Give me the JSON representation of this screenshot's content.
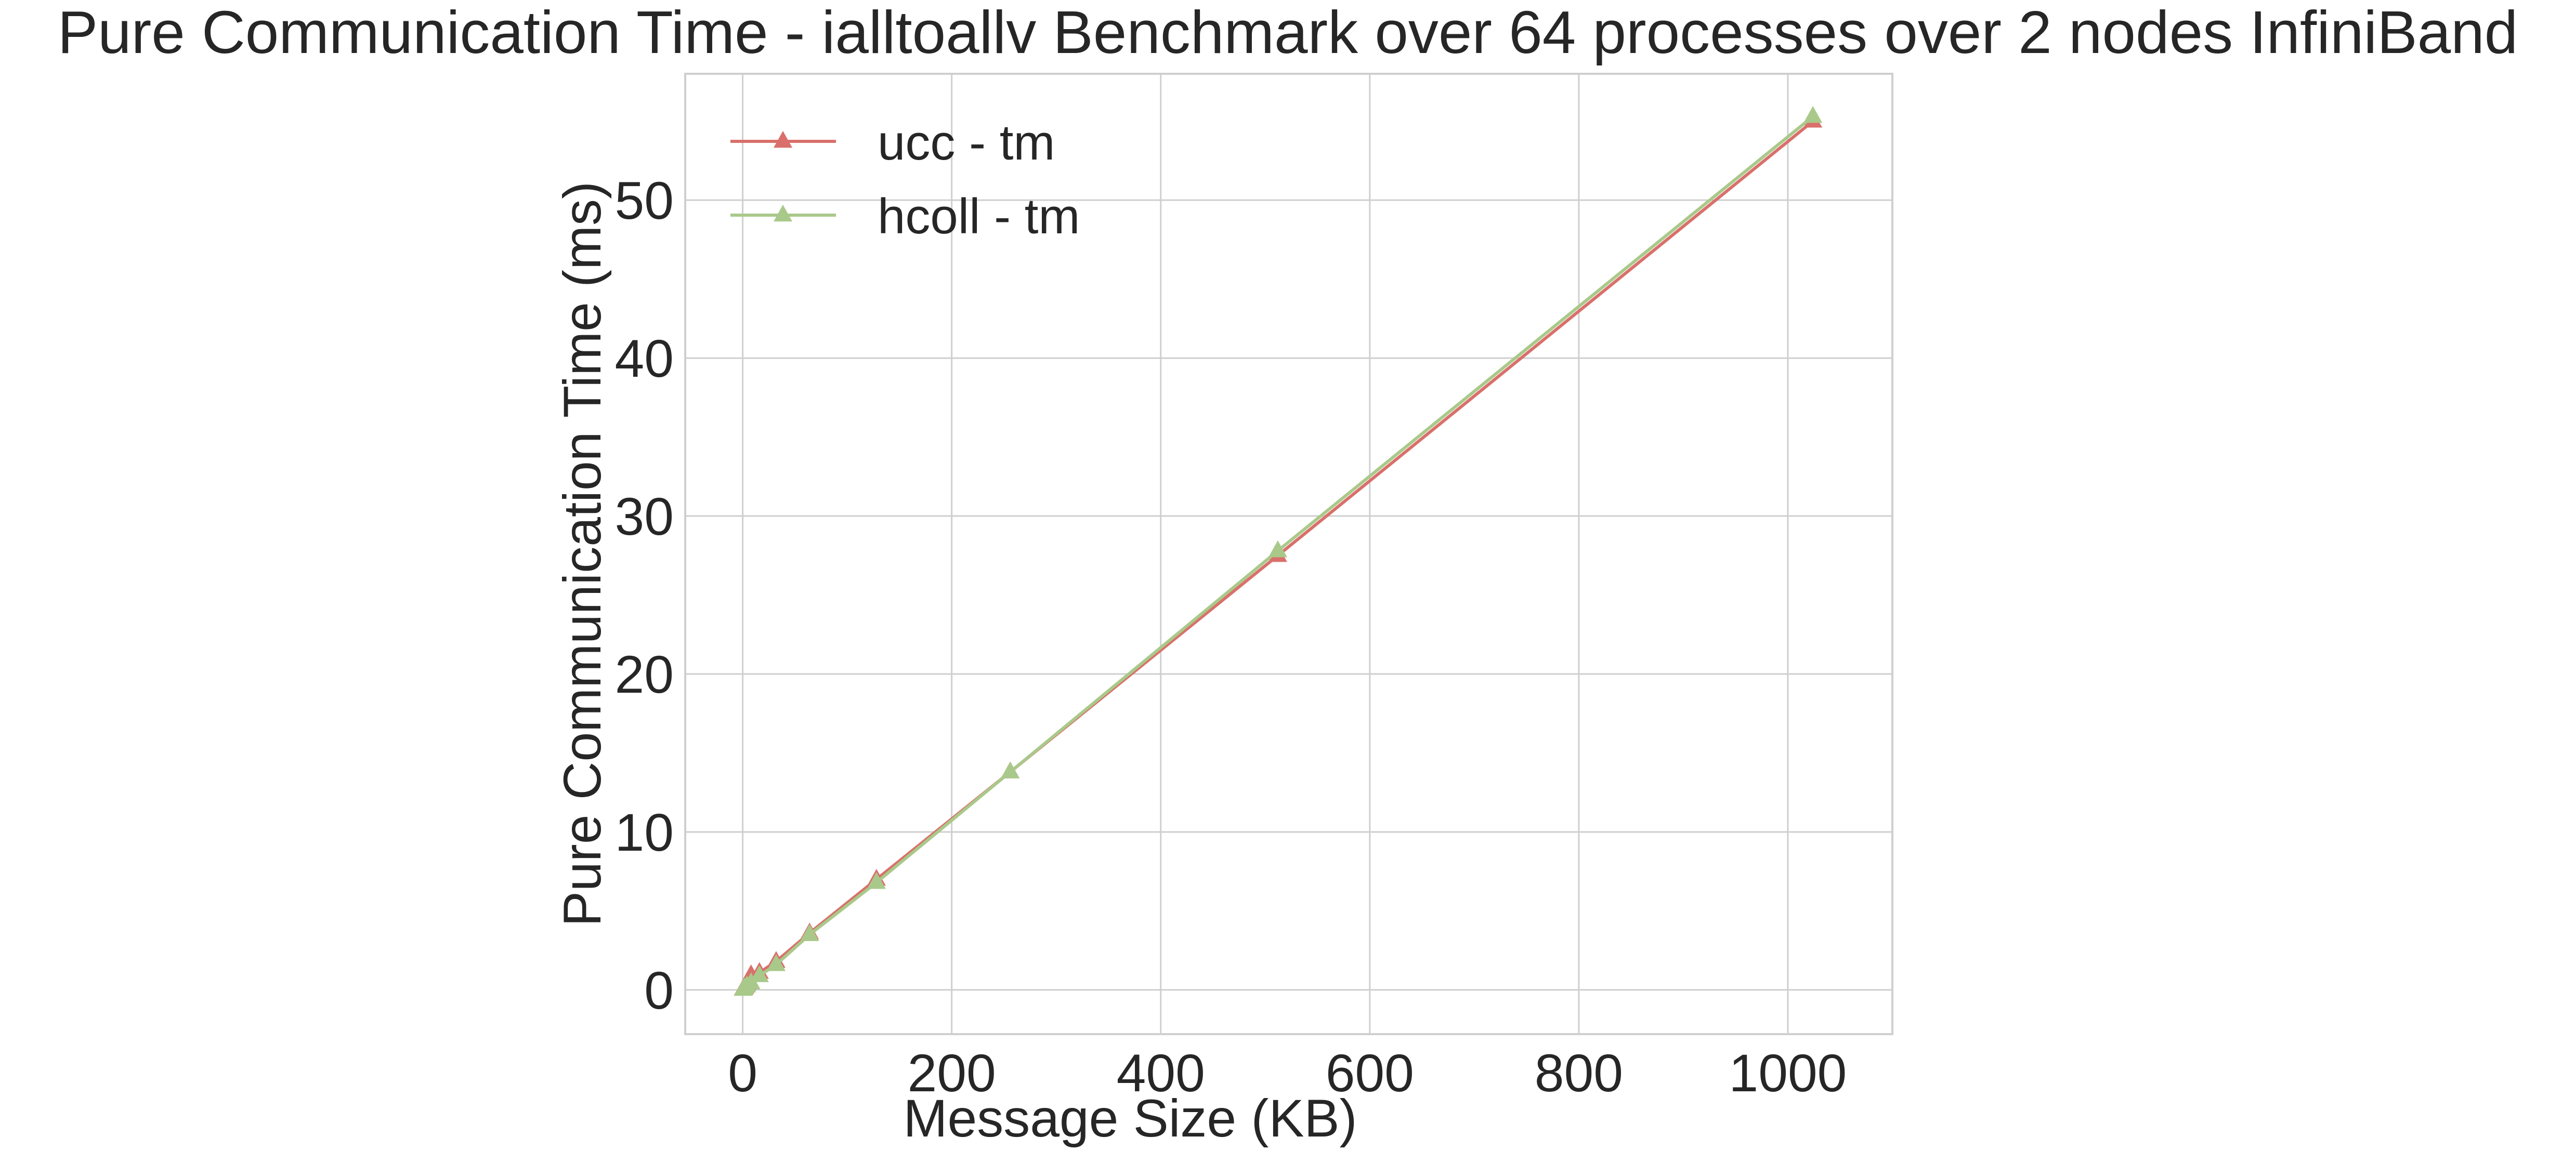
{
  "chart_data": {
    "type": "line",
    "title": "Pure Communication Time - ialltoallv Benchmark over 64 processes over 2 nodes InfiniBand",
    "xlabel": "Message Size (KB)",
    "ylabel": "Pure Communication Time (ms)",
    "xlim": [
      -55,
      1100
    ],
    "ylim": [
      -2.8,
      58
    ],
    "xticks": [
      0,
      200,
      400,
      600,
      800,
      1000
    ],
    "yticks": [
      0,
      10,
      20,
      30,
      40,
      50
    ],
    "grid": true,
    "legend_position": "top-left",
    "marker": "triangle",
    "x": [
      0.5,
      1,
      2,
      4,
      8,
      16,
      32,
      64,
      128,
      256,
      512,
      1024
    ],
    "series": [
      {
        "name": "ucc - tm",
        "color": "#d9706b",
        "values": [
          0.05,
          0.1,
          0.2,
          0.4,
          0.95,
          1.1,
          1.8,
          3.6,
          7.0,
          13.8,
          27.5,
          55.0
        ]
      },
      {
        "name": "hcoll - tm",
        "color": "#a9c98a",
        "values": [
          0.03,
          0.07,
          0.12,
          0.25,
          0.45,
          0.9,
          1.6,
          3.5,
          6.8,
          13.8,
          27.8,
          55.3
        ]
      }
    ]
  }
}
